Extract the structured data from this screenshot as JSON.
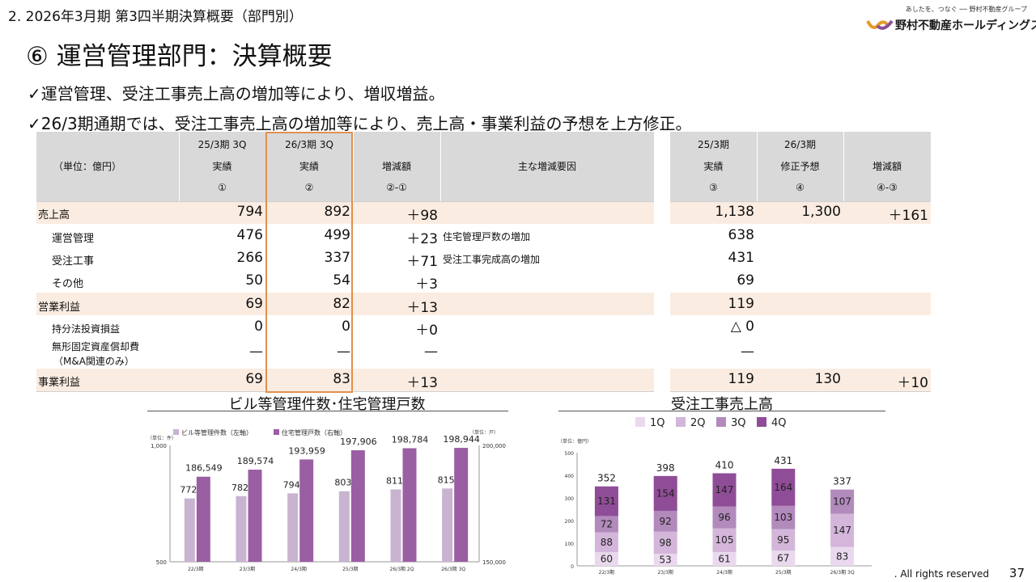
{
  "header": {
    "section_title": "2.  2026年3月期 第3四半期決算概要（部門別）",
    "page_title": "⑥ 運営管理部門：決算概要",
    "logo_tagline": "あしたを、つなぐ ── 野村不動産グループ",
    "logo_name": "野村不動産ホールディングス"
  },
  "bullets": [
    "✓運営管理、受注工事売上高の増加等により、増収増益。",
    "✓26/3期通期では、受注工事売上高の増加等により、売上高・事業利益の予想を上方修正。"
  ],
  "table_left": {
    "unit_label": "（単位：億円）",
    "columns": [
      {
        "period": "25/3期 3Q",
        "kind": "実績",
        "mark": "①"
      },
      {
        "period": "26/3期 3Q",
        "kind": "実績",
        "mark": "②"
      },
      {
        "period": "",
        "kind": "増減額",
        "mark": "②-①"
      }
    ],
    "reason_header": "主な増減要因",
    "rows": [
      {
        "label": "売上高",
        "a": "794",
        "b": "892",
        "diff": "＋98",
        "reason": ""
      },
      {
        "label": "運営管理",
        "a": "476",
        "b": "499",
        "diff": "＋23",
        "reason": "住宅管理戸数の増加"
      },
      {
        "label": "受注工事",
        "a": "266",
        "b": "337",
        "diff": "＋71",
        "reason": "受注工事完成高の増加"
      },
      {
        "label": "その他",
        "a": "50",
        "b": "54",
        "diff": "＋3",
        "reason": ""
      },
      {
        "label": "営業利益",
        "a": "69",
        "b": "82",
        "diff": "＋13",
        "reason": ""
      },
      {
        "label": "持分法投資損益",
        "a": "0",
        "b": "0",
        "diff": "＋0",
        "reason": ""
      },
      {
        "label": "無形固定資産償却費",
        "label2": "（M&A関連のみ）",
        "a": "—",
        "b": "—",
        "diff": "—",
        "reason": ""
      },
      {
        "label": "事業利益",
        "a": "69",
        "b": "83",
        "diff": "＋13",
        "reason": ""
      }
    ]
  },
  "table_right": {
    "columns": [
      {
        "period": "25/3期",
        "kind": "実績",
        "mark": "③"
      },
      {
        "period": "26/3期",
        "kind": "修正予想",
        "mark": "④"
      },
      {
        "period": "",
        "kind": "増減額",
        "mark": "④-③"
      }
    ],
    "rows": [
      {
        "c": "1,138",
        "d": "1,300",
        "diff": "＋161"
      },
      {
        "c": "638",
        "d": "",
        "diff": ""
      },
      {
        "c": "431",
        "d": "",
        "diff": ""
      },
      {
        "c": "69",
        "d": "",
        "diff": ""
      },
      {
        "c": "119",
        "d": "",
        "diff": ""
      },
      {
        "c": "△ 0",
        "d": "",
        "diff": ""
      },
      {
        "c": "—",
        "d": "",
        "diff": ""
      },
      {
        "c": "119",
        "d": "130",
        "diff": "＋10"
      }
    ]
  },
  "chart_data": [
    {
      "type": "bar",
      "title": "ビル等管理件数･住宅管理戸数",
      "left_unit": "（単位：件）",
      "right_unit": "（単位：戸）",
      "categories": [
        "22/3期",
        "23/3期",
        "24/3期",
        "25/3期",
        "26/3期 2Q",
        "26/3期 3Q"
      ],
      "series": [
        {
          "name": "ビル等管理件数（左軸）",
          "axis": "left",
          "color": "#c8b3d1",
          "values": [
            772,
            782,
            794,
            803,
            811,
            815
          ]
        },
        {
          "name": "住宅管理戸数（右軸）",
          "axis": "right",
          "color": "#9a5fa3",
          "values": [
            186549,
            189574,
            193959,
            197906,
            198784,
            198944
          ]
        }
      ],
      "value_labels": {
        "left": [
          "772",
          "782",
          "794",
          "803",
          "811",
          "815"
        ],
        "right": [
          "186,549",
          "189,574",
          "193,959",
          "197,906",
          "198,784",
          "198,944"
        ]
      },
      "ylim_left": [
        500,
        1000
      ],
      "ylim_right": [
        150000,
        200000
      ],
      "yticks_left": [
        "1,000",
        "500"
      ],
      "yticks_right": [
        "200,000",
        "150,000"
      ]
    },
    {
      "type": "bar",
      "stacked": true,
      "title": "受注工事売上高",
      "unit": "（単位：億円）",
      "categories": [
        "22/3期",
        "23/3期",
        "24/3期",
        "25/3期",
        "26/3期 3Q"
      ],
      "series": [
        {
          "name": "1Q",
          "color": "#ead9ee",
          "values": [
            60,
            53,
            61,
            67,
            83
          ]
        },
        {
          "name": "2Q",
          "color": "#d3b6d9",
          "values": [
            88,
            98,
            105,
            95,
            147
          ]
        },
        {
          "name": "3Q",
          "color": "#b28abc",
          "values": [
            72,
            92,
            96,
            103,
            107
          ]
        },
        {
          "name": "4Q",
          "color": "#8f4d97",
          "values": [
            131,
            154,
            147,
            164,
            null
          ]
        }
      ],
      "totals": [
        352,
        398,
        410,
        431,
        337
      ],
      "ylim": [
        0,
        500
      ],
      "yticks": [
        "500",
        "400",
        "300",
        "200",
        "100",
        "0"
      ]
    }
  ],
  "footer": {
    "rights": ". All rights reserved",
    "page_number": "37"
  }
}
